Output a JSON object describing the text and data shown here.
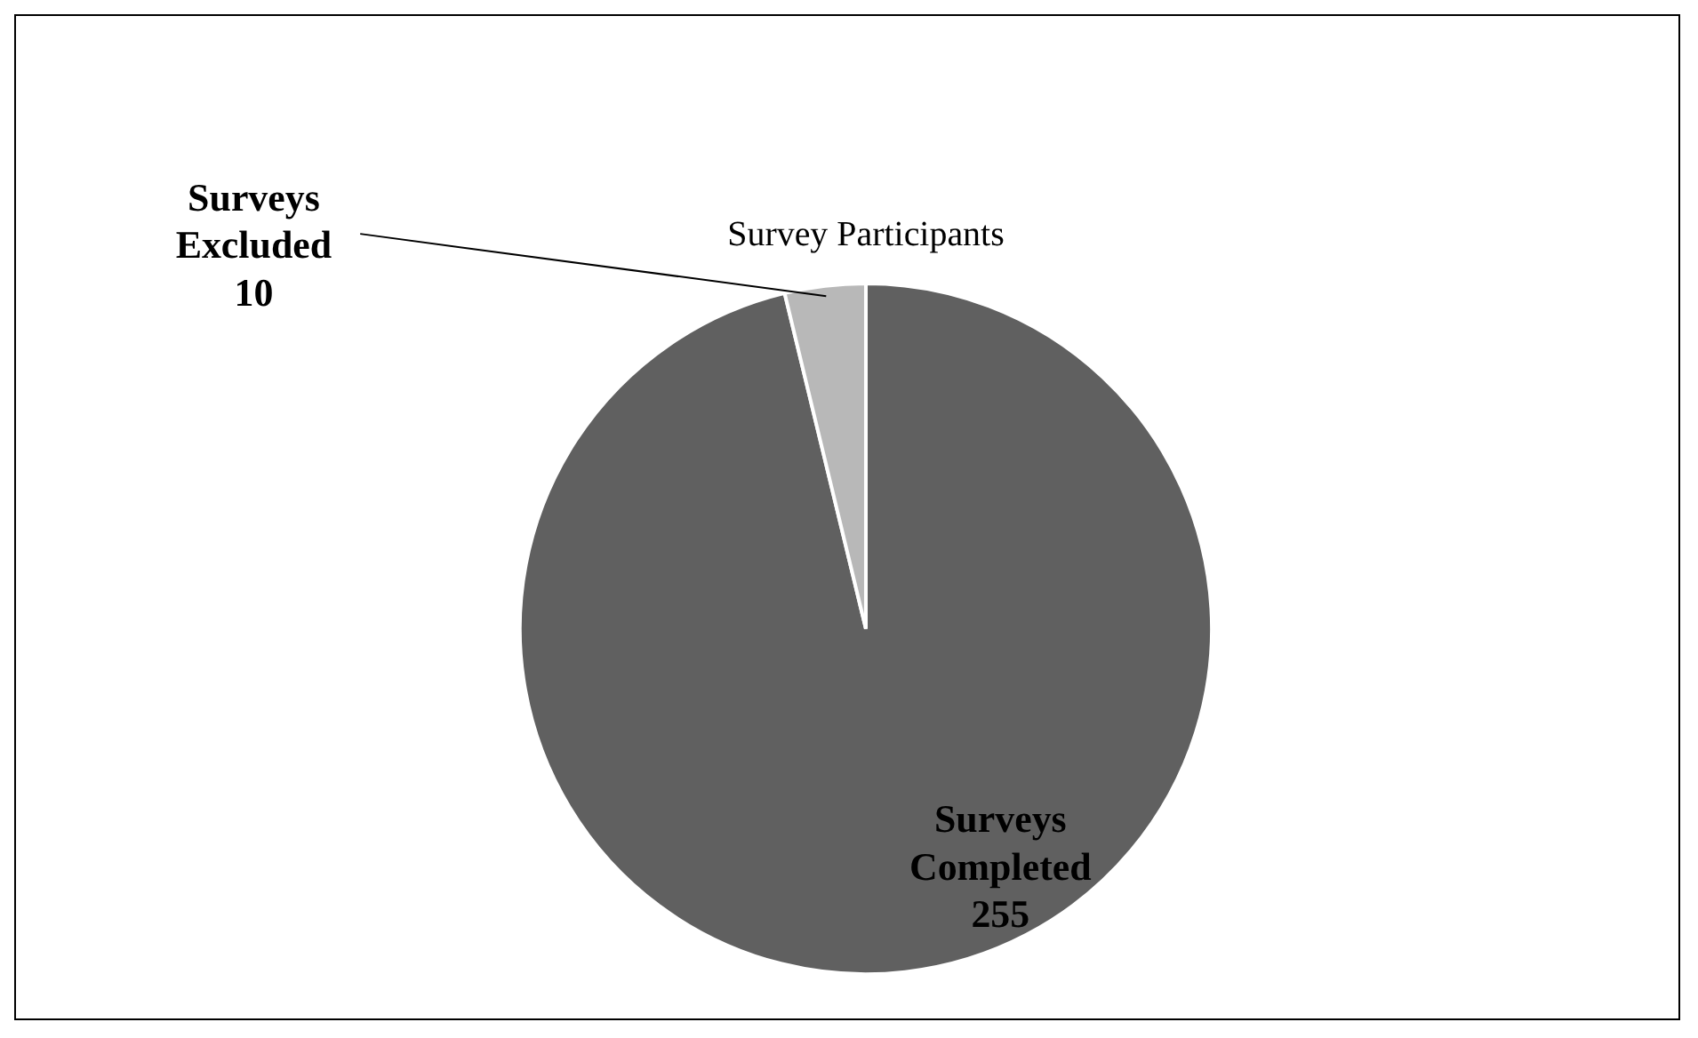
{
  "chart_data": {
    "type": "pie",
    "title": "Survey Participants",
    "categories": [
      "Surveys Completed",
      "Surveys Excluded"
    ],
    "values": [
      255,
      10
    ],
    "colors": [
      "#606060",
      "#b8b8b8"
    ],
    "data_labels": true,
    "legend": false
  }
}
